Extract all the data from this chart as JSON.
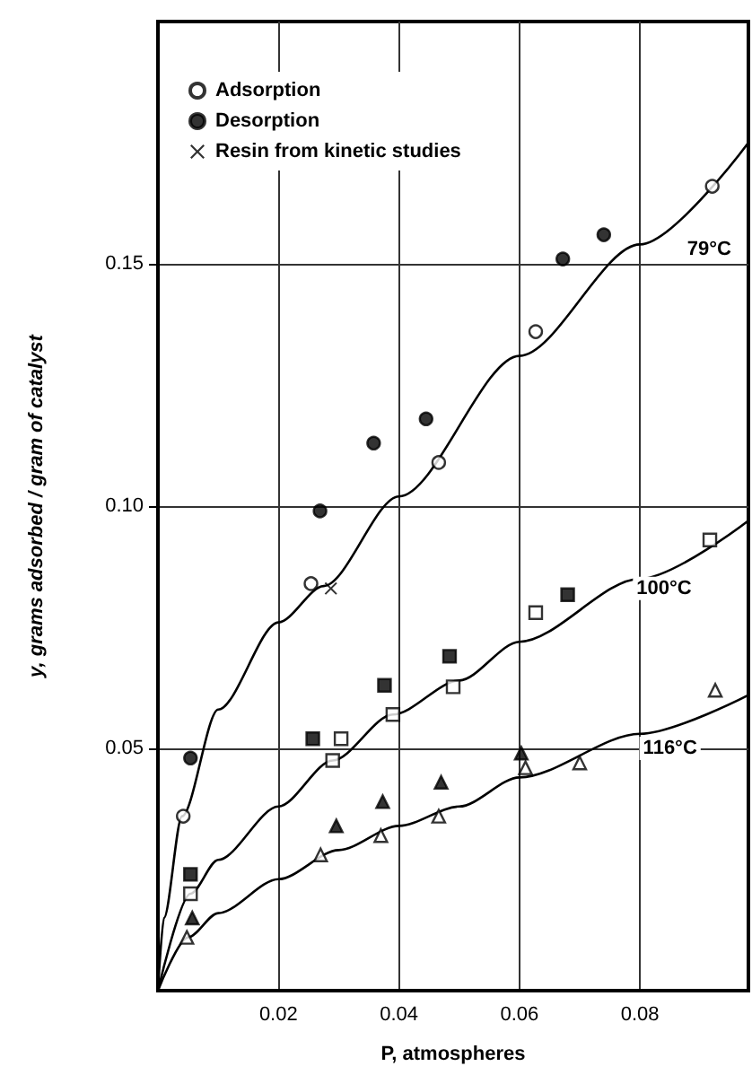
{
  "chart_data": {
    "type": "scatter",
    "xlabel": "P, atmospheres",
    "ylabel": "y, grams adsorbed / gram of catalyst",
    "xlim": [
      0,
      0.098
    ],
    "ylim": [
      0,
      0.2
    ],
    "xticks": [
      0.02,
      0.04,
      0.06,
      0.08
    ],
    "yticks": [
      0.05,
      {
        "value": 0.1,
        "label": "0.10"
      },
      0.15
    ],
    "grid": true,
    "legend": "top left",
    "series": [
      {
        "name": "Adsorption",
        "marker": "circle",
        "color": "#ffffff",
        "x": [
          0.0042,
          0.0254,
          0.0466,
          0.0627,
          0.092
        ],
        "values": [
          0.036,
          0.084,
          0.109,
          0.136,
          0.166
        ]
      },
      {
        "marker": "square",
        "color": "#ffffff",
        "x": [
          0.0054,
          0.029,
          0.0304,
          0.039,
          0.049,
          0.0627,
          0.0916
        ],
        "values": [
          0.02,
          0.0475,
          0.052,
          0.057,
          0.0627,
          0.078,
          0.093
        ]
      },
      {
        "marker": "triangle",
        "color": "#ffffff",
        "x": [
          0.0048,
          0.027,
          0.037,
          0.0466,
          0.061,
          0.07,
          0.0925
        ],
        "values": [
          0.011,
          0.028,
          0.032,
          0.036,
          0.046,
          0.047,
          0.062
        ]
      },
      {
        "name": "Desorption",
        "marker": "circle",
        "color": "#000000",
        "x": [
          0.0054,
          0.0269,
          0.0358,
          0.0445,
          0.0672,
          0.074
        ],
        "values": [
          0.048,
          0.099,
          0.113,
          0.118,
          0.151,
          0.156
        ]
      },
      {
        "marker": "square",
        "color": "#000000",
        "x": [
          0.0054,
          0.0257,
          0.0376,
          0.0484,
          0.068
        ],
        "values": [
          0.024,
          0.052,
          0.063,
          0.069,
          0.0817
        ]
      },
      {
        "marker": "triangle",
        "color": "#000000",
        "x": [
          0.0057,
          0.0296,
          0.0373,
          0.047,
          0.0603
        ],
        "values": [
          0.015,
          0.034,
          0.039,
          0.043,
          0.049
        ]
      },
      {
        "name": "Resin from kinetic studies",
        "marker": "cross",
        "color": "#000000",
        "x": [
          0.0287
        ],
        "values": [
          0.083
        ]
      },
      {
        "type": "line",
        "marker": "none",
        "line_style": "solid",
        "color": "#000000",
        "x": [
          0,
          0.001,
          0.004,
          0.01,
          0.02,
          0.0275,
          0.04,
          0.06,
          0.08,
          0.098
        ],
        "values": [
          0,
          0.015,
          0.036,
          0.058,
          0.076,
          0.0835,
          0.102,
          0.131,
          0.154,
          0.175
        ]
      },
      {
        "type": "line",
        "marker": "none",
        "line_style": "solid",
        "color": "#000000",
        "x": [
          0,
          0.0054,
          0.01,
          0.02,
          0.029,
          0.039,
          0.05,
          0.06,
          0.08,
          0.098
        ],
        "values": [
          0,
          0.02,
          0.027,
          0.038,
          0.0475,
          0.057,
          0.064,
          0.072,
          0.085,
          0.097
        ]
      },
      {
        "type": "line",
        "marker": "none",
        "line_style": "solid",
        "color": "#000000",
        "x": [
          0,
          0.005,
          0.01,
          0.02,
          0.03,
          0.04,
          0.05,
          0.06,
          0.08,
          0.098
        ],
        "values": [
          0,
          0.011,
          0.016,
          0.023,
          0.029,
          0.034,
          0.038,
          0.044,
          0.053,
          0.061
        ]
      }
    ],
    "annotations": [
      {
        "text": "79°C",
        "x": 0.0915,
        "y": 0.153
      },
      {
        "text": "100°C",
        "x": 0.084,
        "y": 0.083
      },
      {
        "text": "116°C",
        "x": 0.085,
        "y": 0.05
      }
    ]
  }
}
